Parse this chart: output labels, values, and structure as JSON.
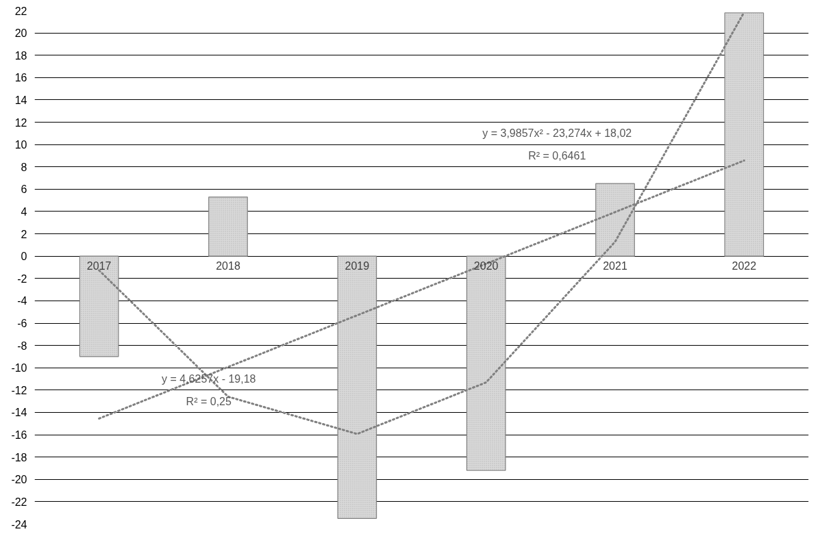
{
  "chart_data": {
    "type": "bar",
    "categories": [
      "2017",
      "2018",
      "2019",
      "2020",
      "2021",
      "2022"
    ],
    "series": [
      {
        "color": "#d9d9d9",
        "values": [
          -9,
          5.3,
          -23.5,
          -19.2,
          6.5,
          21.8
        ]
      },
      {
        "type": "line",
        "color": "#808080",
        "line_style": "dotted",
        "values": [
          -14.55,
          -9.93,
          -5.3,
          -0.68,
          3.95,
          8.57
        ]
      },
      {
        "type": "line",
        "color": "#808080",
        "line_style": "dotted",
        "values": [
          -1.27,
          -12.59,
          -15.93,
          -11.31,
          1.29,
          21.86
        ]
      }
    ],
    "annotations": [
      "y = 4,6257x - 19,18",
      "R² = 0,25",
      "y = 3,9857x² - 23,274x + 18,02",
      "R² = 0,6461"
    ],
    "ylim": [
      -24,
      22
    ],
    "yticks": [
      -24,
      -22,
      -20,
      -18,
      -16,
      -14,
      -12,
      -10,
      -8,
      -6,
      -4,
      -2,
      0,
      2,
      4,
      6,
      8,
      10,
      12,
      14,
      16,
      18,
      20,
      22
    ],
    "grid": "y"
  }
}
